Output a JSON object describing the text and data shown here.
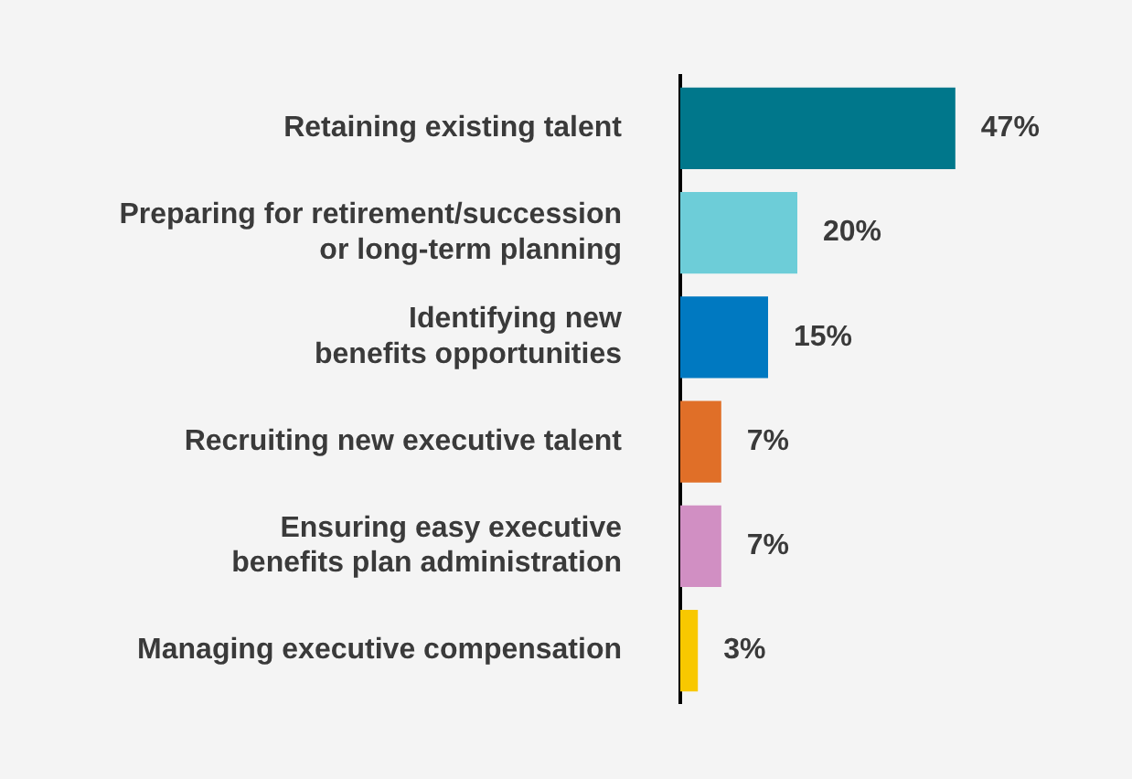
{
  "chart_data": {
    "type": "bar",
    "orientation": "horizontal",
    "categories": [
      "Retaining existing talent",
      "Preparing for retirement/succession\nor long-term planning",
      "Identifying new\nbenefits opportunities",
      "Recruiting new executive talent",
      "Ensuring easy executive\nbenefits plan administration",
      "Managing executive compensation"
    ],
    "values": [
      47,
      20,
      15,
      7,
      7,
      3
    ],
    "colors": [
      "#00778b",
      "#6dcdd8",
      "#0079c1",
      "#e06f28",
      "#d18fc3",
      "#f8c800"
    ],
    "value_labels": [
      "47%",
      "20%",
      "15%",
      "7%",
      "7%",
      "3%"
    ],
    "tick_labels": "y",
    "legend": false
  }
}
